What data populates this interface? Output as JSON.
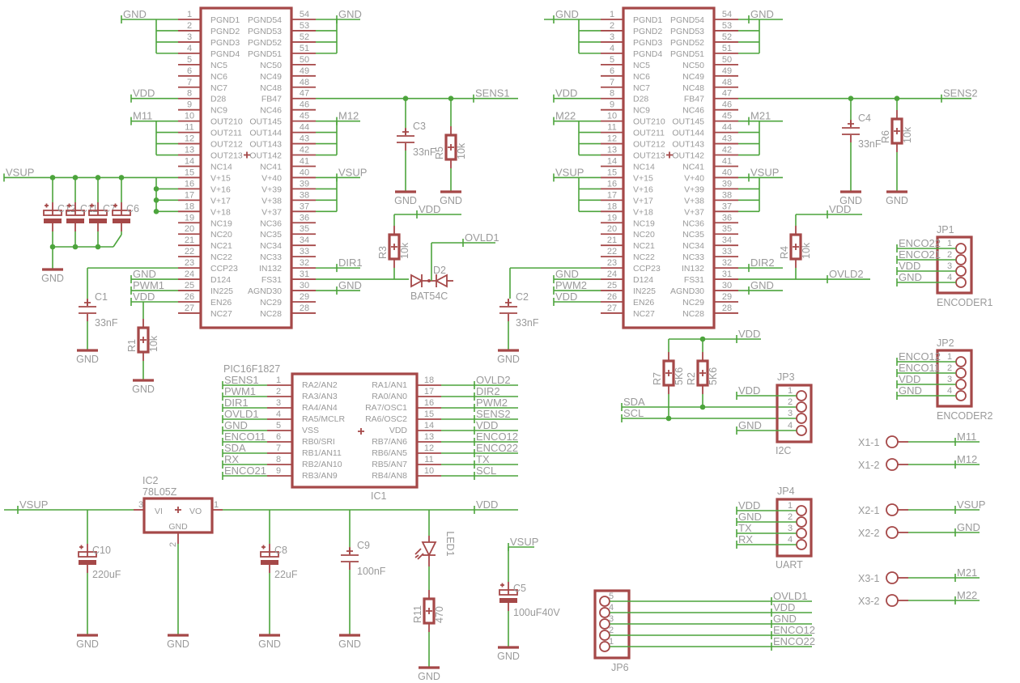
{
  "colors": {
    "wire": "#4ca43c",
    "part": "#a54848",
    "text": "#9a9a9a",
    "background": "#ffffff"
  },
  "drivers": [
    {
      "left_nums": [
        "1",
        "2",
        "3",
        "4",
        "5",
        "6",
        "7",
        "8",
        "9",
        "10",
        "11",
        "12",
        "13",
        "14",
        "15",
        "16",
        "17",
        "18",
        "19",
        "20",
        "21",
        "22",
        "23",
        "24",
        "25",
        "26",
        "27"
      ],
      "left_pins": [
        "PGND1",
        "PGND2",
        "PGND3",
        "PGND4",
        "NC5",
        "NC6",
        "NC7",
        "D28",
        "NC9",
        "OUT210",
        "OUT211",
        "OUT212",
        "OUT213",
        "NC14",
        "V+15",
        "V+16",
        "V+17",
        "V+18",
        "NC19",
        "NC20",
        "NC21",
        "NC22",
        "CCP23",
        "D124",
        "IN225",
        "EN26",
        "NC27"
      ],
      "right_nums": [
        "54",
        "53",
        "52",
        "51",
        "50",
        "49",
        "48",
        "47",
        "46",
        "45",
        "44",
        "43",
        "42",
        "41",
        "40",
        "39",
        "38",
        "37",
        "36",
        "35",
        "34",
        "33",
        "32",
        "31",
        "30",
        "29",
        "28"
      ],
      "right_pins": [
        "PGND54",
        "PGND53",
        "PGND52",
        "PGND51",
        "NC50",
        "NC49",
        "NC48",
        "FB47",
        "NC46",
        "OUT145",
        "OUT144",
        "OUT143",
        "OUT142",
        "NC41",
        "V+40",
        "V+39",
        "V+38",
        "V+37",
        "NC36",
        "NC35",
        "NC34",
        "NC33",
        "IN132",
        "FS31",
        "AGND30",
        "NC29",
        "NC28"
      ]
    },
    {
      "left_nums": [
        "1",
        "2",
        "3",
        "4",
        "5",
        "6",
        "7",
        "8",
        "9",
        "10",
        "11",
        "12",
        "13",
        "14",
        "15",
        "16",
        "17",
        "18",
        "19",
        "20",
        "21",
        "22",
        "23",
        "24",
        "25",
        "26",
        "27"
      ],
      "left_pins": [
        "PGND1",
        "PGND2",
        "PGND3",
        "PGND4",
        "NC5",
        "NC6",
        "NC7",
        "D28",
        "NC9",
        "OUT210",
        "OUT211",
        "OUT212",
        "OUT213",
        "NC14",
        "V+15",
        "V+16",
        "V+17",
        "V+18",
        "NC19",
        "NC20",
        "NC21",
        "NC22",
        "CCP23",
        "D124",
        "IN225",
        "EN26",
        "NC27"
      ],
      "right_nums": [
        "54",
        "53",
        "52",
        "51",
        "50",
        "49",
        "48",
        "47",
        "46",
        "45",
        "44",
        "43",
        "42",
        "41",
        "40",
        "39",
        "38",
        "37",
        "36",
        "35",
        "34",
        "33",
        "32",
        "31",
        "30",
        "29",
        "28"
      ],
      "right_pins": [
        "PGND54",
        "PGND53",
        "PGND52",
        "PGND51",
        "NC50",
        "NC49",
        "NC48",
        "FB47",
        "NC46",
        "OUT145",
        "OUT144",
        "OUT143",
        "OUT142",
        "NC41",
        "V+40",
        "V+39",
        "V+38",
        "V+37",
        "NC36",
        "NC35",
        "NC34",
        "NC33",
        "IN132",
        "FS31",
        "AGND30",
        "NC29",
        "NC28"
      ]
    }
  ],
  "pic": {
    "name": "PIC16F1827",
    "ref": "IC1",
    "left_nums": [
      "1",
      "2",
      "3",
      "4",
      "5",
      "6",
      "7",
      "8",
      "9"
    ],
    "left_pins": [
      "RA2/AN2",
      "RA3/AN3",
      "RA4/AN4",
      "RA5/MCLR",
      "VSS",
      "RB0/SRI",
      "RB1/AN11",
      "RB2/AN10",
      "RB3/AN9"
    ],
    "right_nums": [
      "18",
      "17",
      "16",
      "15",
      "14",
      "13",
      "12",
      "11",
      "10"
    ],
    "right_pins": [
      "RA1/AN1",
      "RA0/AN0",
      "RA7/OSC1",
      "RA6/OSC2",
      "VDD",
      "RB7/AN6",
      "RB6/AN5",
      "RB5/AN7",
      "RB4/AN8"
    ]
  },
  "regulator": {
    "ref": "IC2",
    "value": "78L05Z",
    "pin_vi": "VI",
    "pin_vo": "VO",
    "pin_gnd": "GND",
    "num_vi": "3",
    "num_vo": "1",
    "num_gnd": "2"
  },
  "net_labels": {
    "driver1": [
      "GND",
      "VDD",
      "M11",
      "VSUP",
      "GND",
      "SENS1",
      "M12",
      "VSUP",
      "DIR1",
      "OVLD1",
      "VDD",
      "GND",
      "GND",
      "PWM1",
      "VDD"
    ],
    "driver2": [
      "GND",
      "VDD",
      "M22",
      "VSUP",
      "GND",
      "SENS2",
      "M21",
      "VSUP",
      "DIR2",
      "OVLD2",
      "VDD",
      "GND",
      "GND",
      "PWM2",
      "VDD"
    ],
    "pic_left": [
      "SENS1",
      "PWM1",
      "DIR1",
      "OVLD1",
      "GND",
      "ENCO11",
      "SDA",
      "RX",
      "ENCO21"
    ],
    "pic_right": [
      "OVLD2",
      "DIR2",
      "PWM2",
      "SENS2",
      "VDD",
      "ENCO12",
      "ENCO22",
      "TX",
      "SCL"
    ],
    "power": [
      "VSUP",
      "VDD",
      "VSUP"
    ],
    "i2c": [
      "VDD",
      "SDA",
      "SCL",
      "VDD",
      "GND"
    ],
    "uart": [
      "VDD",
      "GND",
      "TX",
      "RX"
    ],
    "jp1": [
      "ENCO22",
      "ENCO21",
      "VDD",
      "GND"
    ],
    "jp2": [
      "ENCO12",
      "ENCO11",
      "VDD",
      "GND"
    ],
    "terminals": [
      "M11",
      "M12",
      "VSUP",
      "GND",
      "M21",
      "M22"
    ],
    "jp6": [
      "OVLD1",
      "VDD",
      "GND",
      "ENCO12",
      "ENCO22"
    ]
  },
  "ground_symbols": [
    "GND",
    "GND",
    "GND",
    "GND",
    "GND",
    "GND",
    "GND",
    "GND",
    "GND",
    "GND",
    "GND",
    "GND",
    "GND",
    "GND"
  ],
  "parts": {
    "c12": {
      "ref": "C12"
    },
    "c11": {
      "ref": "C11"
    },
    "c7": {
      "ref": "C7"
    },
    "c6": {
      "ref": "C6"
    },
    "c1": {
      "ref": "C1",
      "value": "33nF"
    },
    "r1": {
      "ref": "R1",
      "value": "10k"
    },
    "c3": {
      "ref": "C3",
      "value": "33nF"
    },
    "r5": {
      "ref": "R5",
      "value": "10k"
    },
    "r3": {
      "ref": "R3",
      "value": "10k"
    },
    "d2": {
      "ref": "D2",
      "value": "BAT54C"
    },
    "c2": {
      "ref": "C2",
      "value": "33nF"
    },
    "c4": {
      "ref": "C4",
      "value": "33nF"
    },
    "r6": {
      "ref": "R6",
      "value": "10k"
    },
    "r4": {
      "ref": "R4",
      "value": "10k"
    },
    "r7": {
      "ref": "R7",
      "value": "5K6"
    },
    "r2": {
      "ref": "R2",
      "value": "5K6"
    },
    "c10": {
      "ref": "C10",
      "value": "220uF"
    },
    "c8": {
      "ref": "C8",
      "value": "22uF"
    },
    "c9": {
      "ref": "C9",
      "value": "100nF"
    },
    "led1": {
      "ref": "LED1"
    },
    "r11": {
      "ref": "R11",
      "value": "470"
    },
    "c5": {
      "ref": "C5",
      "value": "100uF40V"
    }
  },
  "connectors": {
    "jp1": {
      "ref": "JP1",
      "value": "ENCODER1",
      "pins": [
        "1",
        "2",
        "3",
        "4"
      ]
    },
    "jp2": {
      "ref": "JP2",
      "value": "ENCODER2",
      "pins": [
        "1",
        "2",
        "3",
        "4"
      ]
    },
    "jp3": {
      "ref": "JP3",
      "value": "I2C",
      "pins": [
        "1",
        "2",
        "3",
        "4"
      ]
    },
    "jp4": {
      "ref": "JP4",
      "value": "UART",
      "pins": [
        "1",
        "2",
        "3",
        "4"
      ]
    },
    "jp6": {
      "ref": "JP6",
      "pins": [
        "5",
        "4",
        "3",
        "2",
        "1"
      ]
    }
  },
  "terminals": [
    "X1-1",
    "X1-2",
    "X2-1",
    "X2-2",
    "X3-1",
    "X3-2"
  ]
}
